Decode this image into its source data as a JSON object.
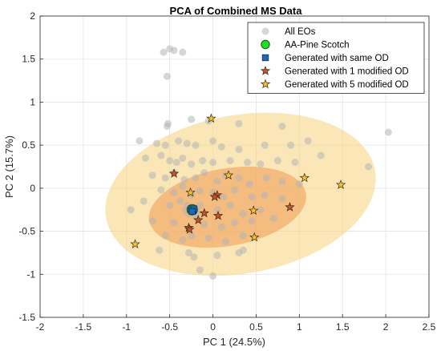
{
  "chart_data": {
    "type": "scatter",
    "title": "PCA of Combined MS Data",
    "xlabel": "PC 1 (24.5%)",
    "ylabel": "PC 2 (15.7%)",
    "xlim": [
      -2,
      2.5
    ],
    "ylim": [
      -1.5,
      2
    ],
    "xticks": [
      -2,
      -1.5,
      -1,
      -0.5,
      0,
      0.5,
      1,
      1.5,
      2,
      2.5
    ],
    "yticks": [
      -1.5,
      -1,
      -0.5,
      0,
      0.5,
      1,
      1.5,
      2
    ],
    "xtick_labels": [
      "-2",
      "-1.5",
      "-1",
      "-0.5",
      "0",
      "0.5",
      "1",
      "1.5",
      "2",
      "2.5"
    ],
    "ytick_labels": [
      "-1.5",
      "-1",
      "-0.5",
      "0",
      "0.5",
      "1",
      "1.5",
      "2"
    ],
    "grid": true,
    "legend_position": "top-right",
    "ellipses": [
      {
        "cx": 0.32,
        "cy": -0.07,
        "rx": 1.58,
        "ry": 0.92,
        "angle_deg": 10,
        "color": "#f5d27a",
        "opacity": 0.55
      },
      {
        "cx": 0.17,
        "cy": -0.22,
        "rx": 0.92,
        "ry": 0.45,
        "angle_deg": 10,
        "color": "#f0a05a",
        "opacity": 0.6
      }
    ],
    "series": [
      {
        "name": "All EOs",
        "marker": "circle",
        "color": "#b4b4b4",
        "points": [
          [
            -0.57,
            1.58
          ],
          [
            -0.5,
            1.62
          ],
          [
            -0.45,
            1.6
          ],
          [
            -0.35,
            1.58
          ],
          [
            -0.53,
            1.3
          ],
          [
            -0.52,
            0.75
          ],
          [
            -0.53,
            0.72
          ],
          [
            -0.25,
            0.8
          ],
          [
            -0.05,
            0.78
          ],
          [
            0.3,
            0.75
          ],
          [
            0.8,
            0.72
          ],
          [
            2.03,
            0.65
          ],
          [
            -0.85,
            0.55
          ],
          [
            -0.65,
            0.52
          ],
          [
            -0.55,
            0.5
          ],
          [
            -0.4,
            0.55
          ],
          [
            -0.3,
            0.52
          ],
          [
            -0.2,
            0.5
          ],
          [
            0.0,
            0.55
          ],
          [
            0.1,
            0.48
          ],
          [
            0.3,
            0.45
          ],
          [
            0.6,
            0.5
          ],
          [
            0.9,
            0.5
          ],
          [
            1.1,
            0.55
          ],
          [
            -0.78,
            0.35
          ],
          [
            -0.6,
            0.38
          ],
          [
            -0.5,
            0.32
          ],
          [
            -0.42,
            0.3
          ],
          [
            -0.35,
            0.35
          ],
          [
            -0.25,
            0.28
          ],
          [
            -0.12,
            0.32
          ],
          [
            0.0,
            0.3
          ],
          [
            0.2,
            0.32
          ],
          [
            0.4,
            0.3
          ],
          [
            0.55,
            0.28
          ],
          [
            0.75,
            0.32
          ],
          [
            0.95,
            0.3
          ],
          [
            1.25,
            0.38
          ],
          [
            1.8,
            0.25
          ],
          [
            -0.7,
            0.15
          ],
          [
            -0.55,
            0.12
          ],
          [
            -0.45,
            0.18
          ],
          [
            -0.33,
            0.1
          ],
          [
            -0.2,
            0.12
          ],
          [
            -0.1,
            0.18
          ],
          [
            0.05,
            0.08
          ],
          [
            0.15,
            0.15
          ],
          [
            0.3,
            0.12
          ],
          [
            0.42,
            0.05
          ],
          [
            0.62,
            0.12
          ],
          [
            0.8,
            0.08
          ],
          [
            1.0,
            0.05
          ],
          [
            -0.6,
            -0.02
          ],
          [
            -0.45,
            -0.05
          ],
          [
            -0.35,
            0.02
          ],
          [
            -0.25,
            -0.08
          ],
          [
            -0.15,
            -0.03
          ],
          [
            0.0,
            -0.05
          ],
          [
            0.12,
            -0.1
          ],
          [
            0.25,
            -0.02
          ],
          [
            0.45,
            -0.1
          ],
          [
            0.6,
            -0.08
          ],
          [
            0.8,
            -0.12
          ],
          [
            -0.8,
            -0.15
          ],
          [
            -0.5,
            -0.2
          ],
          [
            -0.38,
            -0.15
          ],
          [
            -0.3,
            -0.2
          ],
          [
            -0.22,
            -0.22
          ],
          [
            -0.18,
            -0.28
          ],
          [
            -0.28,
            -0.3
          ],
          [
            -0.32,
            -0.25
          ],
          [
            -0.2,
            -0.32
          ],
          [
            -0.15,
            -0.2
          ],
          [
            0.05,
            -0.25
          ],
          [
            0.2,
            -0.2
          ],
          [
            0.35,
            -0.3
          ],
          [
            0.55,
            -0.25
          ],
          [
            0.7,
            -0.35
          ],
          [
            -0.7,
            -0.38
          ],
          [
            -0.45,
            -0.4
          ],
          [
            -0.1,
            -0.42
          ],
          [
            0.1,
            -0.45
          ],
          [
            0.25,
            -0.4
          ],
          [
            0.45,
            -0.38
          ],
          [
            -0.55,
            -0.55
          ],
          [
            -0.35,
            -0.6
          ],
          [
            -0.25,
            -0.55
          ],
          [
            -0.05,
            -0.58
          ],
          [
            0.15,
            -0.62
          ],
          [
            0.35,
            -0.55
          ],
          [
            -0.28,
            -0.75
          ],
          [
            -0.22,
            -0.8
          ],
          [
            0.05,
            -0.78
          ],
          [
            0.3,
            -0.75
          ],
          [
            -0.15,
            -0.95
          ],
          [
            0.0,
            -1.02
          ],
          [
            0.35,
            -0.72
          ],
          [
            -0.95,
            -0.25
          ],
          [
            -0.62,
            -0.72
          ]
        ]
      },
      {
        "name": "AA-Pine Scotch",
        "marker": "circle-large",
        "color": "#22dd22",
        "points": [
          [
            -0.24,
            -0.25
          ]
        ]
      },
      {
        "name": "Generated with same OD",
        "marker": "square",
        "color": "#2566b0",
        "points": [
          [
            -0.23,
            -0.26
          ],
          [
            -0.25,
            -0.24
          ],
          [
            -0.22,
            -0.24
          ],
          [
            -0.24,
            -0.27
          ]
        ]
      },
      {
        "name": "Generated with 1 modified OD",
        "marker": "star",
        "color": "#c5502a",
        "points": [
          [
            -0.45,
            0.17
          ],
          [
            0.05,
            -0.08
          ],
          [
            0.02,
            -0.1
          ],
          [
            -0.1,
            -0.29
          ],
          [
            -0.17,
            -0.37
          ],
          [
            -0.28,
            -0.46
          ],
          [
            -0.27,
            -0.48
          ],
          [
            0.06,
            -0.32
          ],
          [
            0.89,
            -0.22
          ]
        ]
      },
      {
        "name": "Generated with 5 modified OD",
        "marker": "star",
        "color": "#f3c232",
        "points": [
          [
            -0.02,
            0.81
          ],
          [
            0.18,
            0.15
          ],
          [
            1.06,
            0.12
          ],
          [
            1.48,
            0.04
          ],
          [
            -0.26,
            -0.05
          ],
          [
            0.47,
            -0.26
          ],
          [
            0.48,
            -0.57
          ],
          [
            -0.9,
            -0.65
          ]
        ]
      }
    ]
  }
}
